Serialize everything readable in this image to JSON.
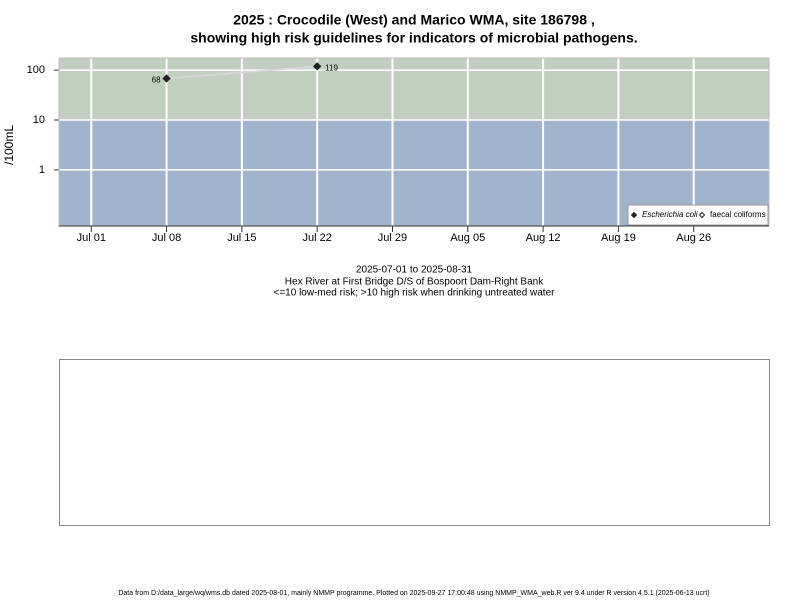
{
  "chart_data": {
    "type": "line",
    "title": [
      "2025 : Crocodile (West) and Marico WMA, site 186798 ,",
      "showing high risk guidelines for indicators of microbial pathogens."
    ],
    "ylabel": "/100mL",
    "caption": [
      "2025-07-01 to 2025-08-31",
      "Hex River at First Bridge D/S of Bospoort Dam-Right Bank",
      "<=10 low-med risk; >10 high risk when drinking untreated water"
    ],
    "footer": "Data from D:/data_large/wq/wms.db dated 2025-08-01, mainly NMMP programme. Plotted on 2025-09-27 17:00:48 using NMMP_WMA_web.R ver 9.4 under R version 4.5.1 (2025-06-13 ucrt)",
    "x": [
      "2025-07-08",
      "2025-07-22"
    ],
    "series": [
      {
        "name": "Escherichia coli",
        "color": "#222222",
        "line_color": "#d8d8d8",
        "marker": "filled-diamond",
        "values": [
          68,
          119
        ]
      },
      {
        "name": "faecal coliforms",
        "color": "#222222",
        "marker": "open-diamond",
        "values": [
          null,
          null
        ]
      }
    ],
    "xlim": [
      "2025-06-28",
      "2025-09-02"
    ],
    "xticks": [
      {
        "value": "2025-07-01",
        "label": "Jul 01"
      },
      {
        "value": "2025-07-08",
        "label": "Jul 08"
      },
      {
        "value": "2025-07-15",
        "label": "Jul 15"
      },
      {
        "value": "2025-07-22",
        "label": "Jul 22"
      },
      {
        "value": "2025-07-29",
        "label": "Jul 29"
      },
      {
        "value": "2025-08-05",
        "label": "Aug 05"
      },
      {
        "value": "2025-08-12",
        "label": "Aug 12"
      },
      {
        "value": "2025-08-19",
        "label": "Aug 19"
      },
      {
        "value": "2025-08-26",
        "label": "Aug 26"
      }
    ],
    "ylim": [
      0.075,
      175
    ],
    "yticks": [
      1,
      10,
      100
    ],
    "log_y": true,
    "grid": true,
    "threshold": 10,
    "high_risk_color": "#c2cec0",
    "low_risk_color": "#a2b3cc",
    "legend": "bottom-right"
  }
}
